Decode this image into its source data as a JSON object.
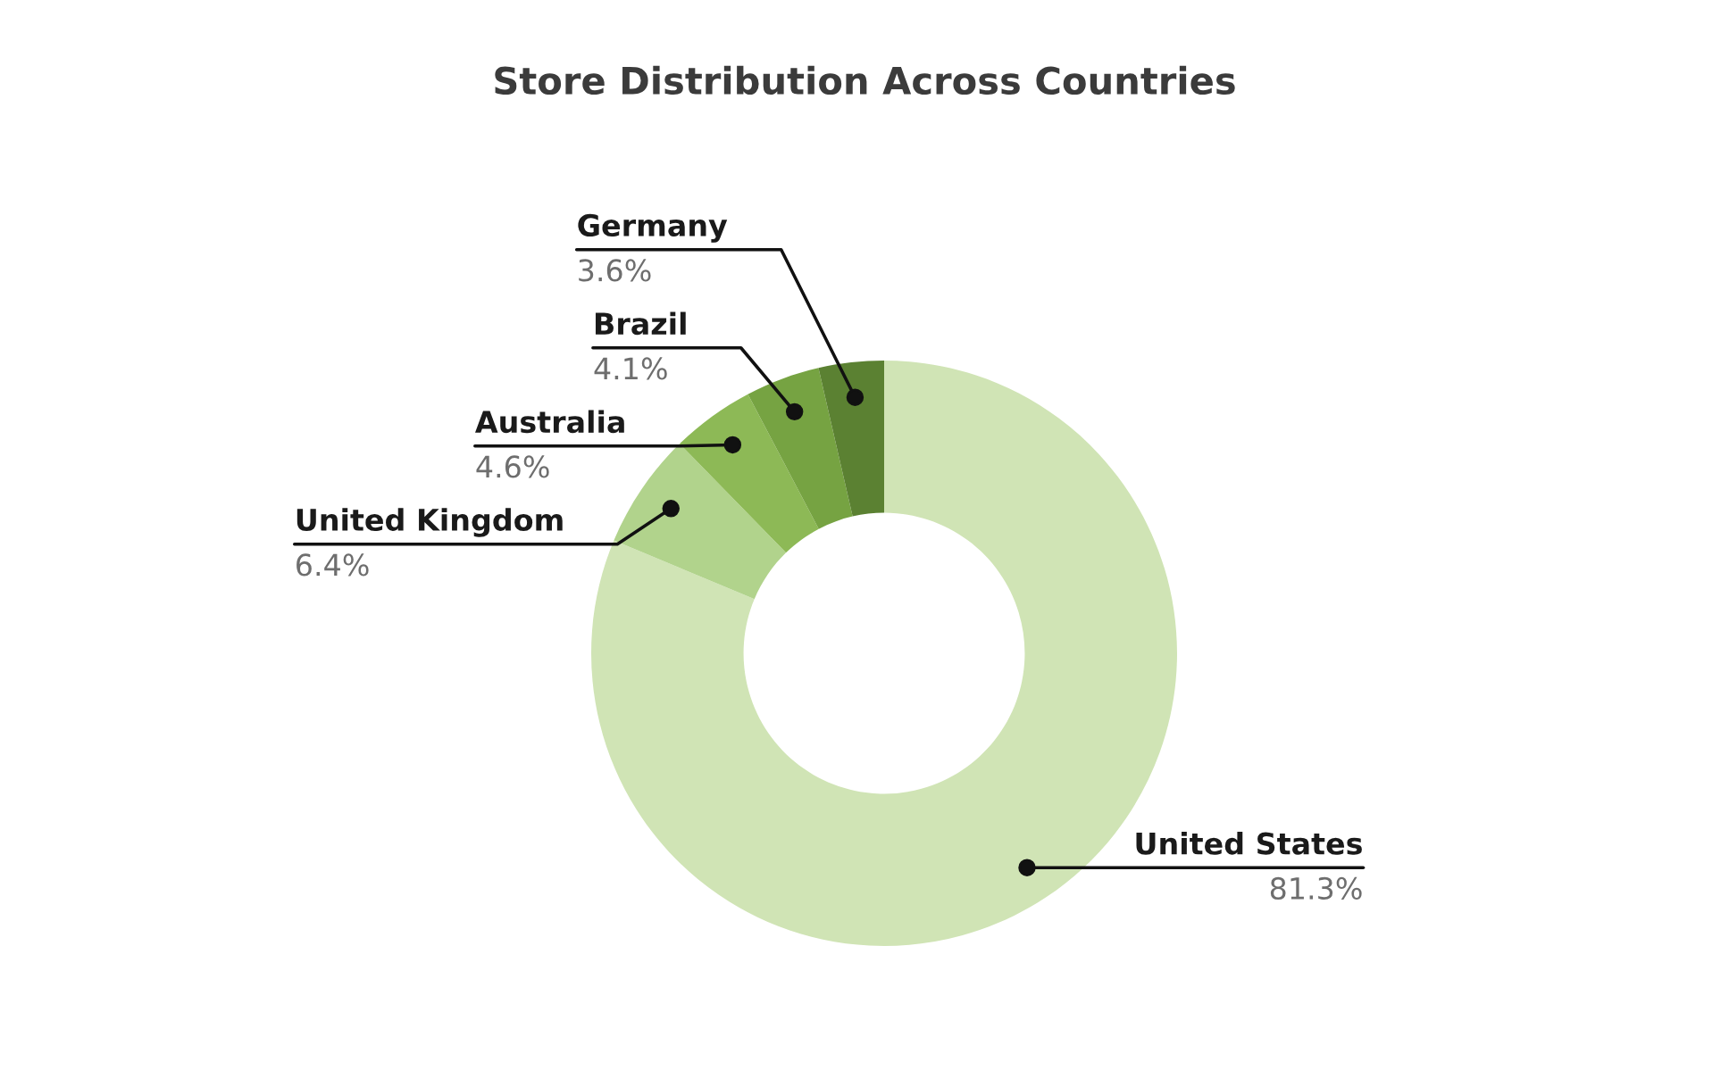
{
  "chart_data": {
    "type": "donut",
    "title": "Store Distribution Across Countries",
    "categories": [
      "United States",
      "United Kingdom",
      "Australia",
      "Brazil",
      "Germany"
    ],
    "values": [
      81.3,
      6.4,
      4.6,
      4.1,
      3.6
    ],
    "value_labels": [
      "81.3%",
      "6.4%",
      "4.6%",
      "4.1%",
      "3.6%"
    ],
    "colors": [
      "#d0e4b5",
      "#b1d38c",
      "#8db956",
      "#76a342",
      "#5b8132"
    ]
  }
}
